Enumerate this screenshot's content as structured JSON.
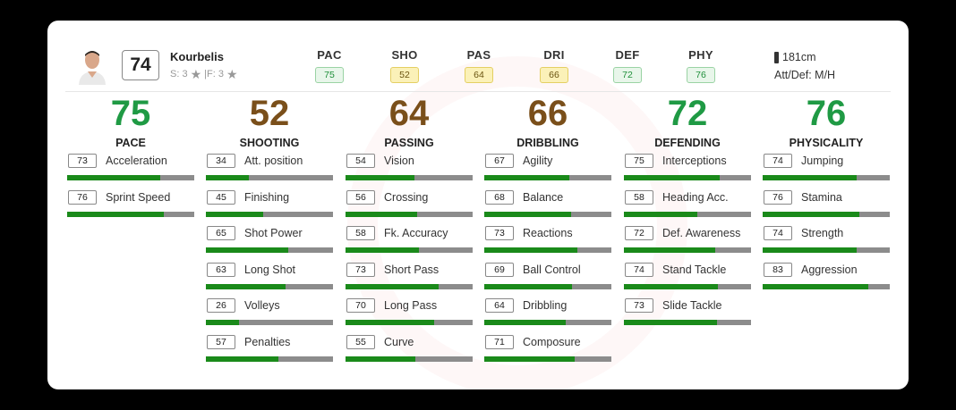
{
  "player": {
    "name": "Kourbelis",
    "overall": "74",
    "skills_text": "S: 3",
    "weakfoot_text": "|F: 3",
    "height": "181cm",
    "work_rate": "Att/Def: M/H"
  },
  "summary": [
    {
      "label": "PAC",
      "value": "75",
      "tone": "green"
    },
    {
      "label": "SHO",
      "value": "52",
      "tone": "yellow"
    },
    {
      "label": "PAS",
      "value": "64",
      "tone": "yellow"
    },
    {
      "label": "DRI",
      "value": "66",
      "tone": "yellow"
    },
    {
      "label": "DEF",
      "value": "72",
      "tone": "green"
    },
    {
      "label": "PHY",
      "value": "76",
      "tone": "green"
    }
  ],
  "categories": [
    {
      "name": "PACE",
      "value": "75",
      "tone": "green",
      "stats": [
        {
          "name": "Acceleration",
          "value": "73"
        },
        {
          "name": "Sprint Speed",
          "value": "76"
        }
      ]
    },
    {
      "name": "SHOOTING",
      "value": "52",
      "tone": "brown",
      "stats": [
        {
          "name": "Att. position",
          "value": "34"
        },
        {
          "name": "Finishing",
          "value": "45"
        },
        {
          "name": "Shot Power",
          "value": "65"
        },
        {
          "name": "Long Shot",
          "value": "63"
        },
        {
          "name": "Volleys",
          "value": "26"
        },
        {
          "name": "Penalties",
          "value": "57"
        }
      ]
    },
    {
      "name": "PASSING",
      "value": "64",
      "tone": "brown",
      "stats": [
        {
          "name": "Vision",
          "value": "54"
        },
        {
          "name": "Crossing",
          "value": "56"
        },
        {
          "name": "Fk. Accuracy",
          "value": "58"
        },
        {
          "name": "Short Pass",
          "value": "73"
        },
        {
          "name": "Long Pass",
          "value": "70"
        },
        {
          "name": "Curve",
          "value": "55"
        }
      ]
    },
    {
      "name": "DRIBBLING",
      "value": "66",
      "tone": "brown",
      "stats": [
        {
          "name": "Agility",
          "value": "67"
        },
        {
          "name": "Balance",
          "value": "68"
        },
        {
          "name": "Reactions",
          "value": "73"
        },
        {
          "name": "Ball Control",
          "value": "69"
        },
        {
          "name": "Dribbling",
          "value": "64"
        },
        {
          "name": "Composure",
          "value": "71"
        }
      ]
    },
    {
      "name": "DEFENDING",
      "value": "72",
      "tone": "green",
      "stats": [
        {
          "name": "Interceptions",
          "value": "75"
        },
        {
          "name": "Heading Acc.",
          "value": "58"
        },
        {
          "name": "Def. Awareness",
          "value": "72"
        },
        {
          "name": "Stand Tackle",
          "value": "74"
        },
        {
          "name": "Slide Tackle",
          "value": "73"
        }
      ]
    },
    {
      "name": "PHYSICALITY",
      "value": "76",
      "tone": "green",
      "stats": [
        {
          "name": "Jumping",
          "value": "74"
        },
        {
          "name": "Stamina",
          "value": "76"
        },
        {
          "name": "Strength",
          "value": "74"
        },
        {
          "name": "Aggression",
          "value": "83"
        }
      ]
    }
  ],
  "colors": {
    "green": "#1f9a44",
    "brown": "#7a4f1a",
    "bar_fill": "#1a8a1a",
    "bar_track": "#8c8c8c"
  }
}
